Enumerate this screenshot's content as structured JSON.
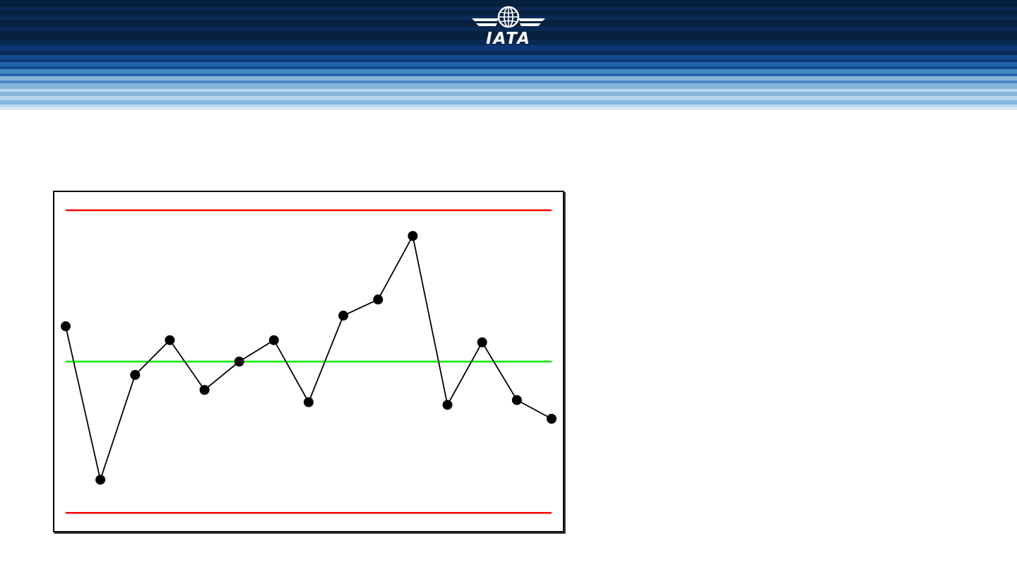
{
  "header": {
    "logo_text": "IATA",
    "logo_icon": "globe-wings-icon",
    "band_colors": [
      "#06203f",
      "#0a2a56",
      "#0d3773",
      "#134b8f",
      "#2166ab",
      "#4a8ac4",
      "#86b5db",
      "#b9d6ec",
      "#dbeaf5"
    ]
  },
  "chart_data": {
    "type": "line",
    "title": "",
    "xlabel": "",
    "ylabel": "",
    "x": [
      1,
      2,
      3,
      4,
      5,
      6,
      7,
      8,
      9,
      10,
      11,
      12,
      13,
      14,
      15
    ],
    "series": [
      {
        "values": [
          0.66,
          -2.21,
          -0.25,
          0.4,
          -0.53,
          0.0,
          0.4,
          -0.76,
          0.86,
          1.16,
          2.35,
          -0.81,
          0.36,
          -0.72,
          -1.07
        ],
        "color": "#000000",
        "marker": "circle"
      }
    ],
    "reference_lines": [
      {
        "role": "upper-control-limit",
        "y": 2.83,
        "color": "#ff0000"
      },
      {
        "role": "center-line",
        "y": 0,
        "color": "#00ee00"
      },
      {
        "role": "lower-control-limit",
        "y": -2.83,
        "color": "#ff0000"
      }
    ],
    "ylim": [
      -3.17,
      3.17
    ],
    "grid": false,
    "legend": "none"
  }
}
